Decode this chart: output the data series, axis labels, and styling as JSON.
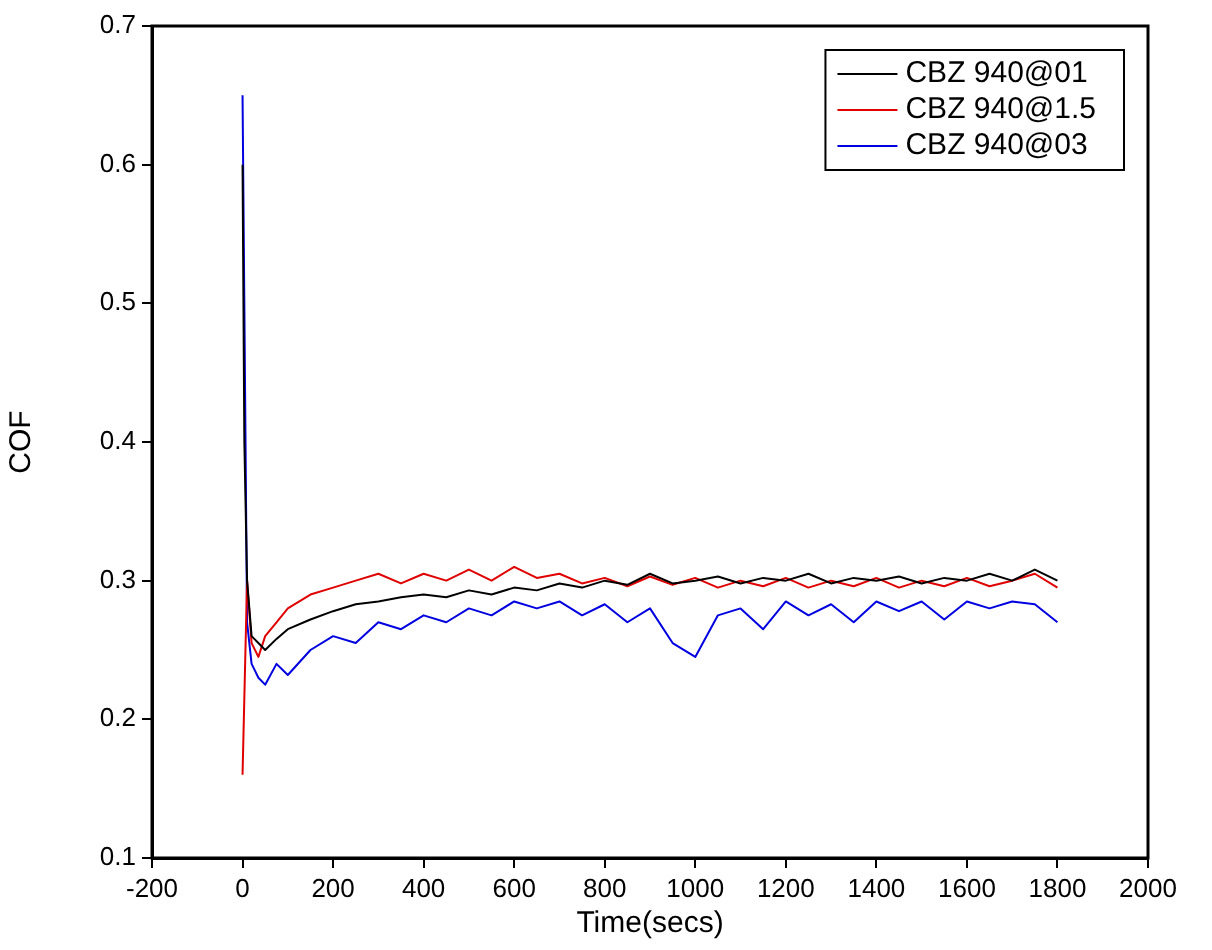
{
  "chart_data": {
    "type": "line",
    "xlabel": "Time(secs)",
    "ylabel": "COF",
    "x": [
      0,
      4,
      10,
      20,
      35,
      50,
      75,
      100,
      150,
      200,
      250,
      300,
      350,
      400,
      450,
      500,
      550,
      600,
      650,
      700,
      750,
      800,
      850,
      900,
      950,
      1000,
      1050,
      1100,
      1150,
      1200,
      1250,
      1300,
      1350,
      1400,
      1450,
      1500,
      1550,
      1600,
      1650,
      1700,
      1750,
      1800
    ],
    "series": [
      {
        "name": "CBZ 940@01",
        "color": "#000000",
        "values": [
          0.6,
          0.4,
          0.3,
          0.26,
          0.255,
          0.25,
          0.258,
          0.265,
          0.272,
          0.278,
          0.283,
          0.285,
          0.288,
          0.29,
          0.288,
          0.293,
          0.29,
          0.295,
          0.293,
          0.298,
          0.295,
          0.3,
          0.297,
          0.305,
          0.298,
          0.3,
          0.303,
          0.298,
          0.302,
          0.3,
          0.305,
          0.298,
          0.302,
          0.3,
          0.303,
          0.298,
          0.302,
          0.3,
          0.305,
          0.3,
          0.308,
          0.3
        ]
      },
      {
        "name": "CBZ 940@1.5",
        "color": "#e00000",
        "values": [
          0.16,
          null,
          0.3,
          0.255,
          0.245,
          0.26,
          0.27,
          0.28,
          0.29,
          0.295,
          0.3,
          0.305,
          0.298,
          0.305,
          0.3,
          0.308,
          0.3,
          0.31,
          0.302,
          0.305,
          0.298,
          0.302,
          0.296,
          0.303,
          0.297,
          0.302,
          0.295,
          0.3,
          0.296,
          0.302,
          0.295,
          0.3,
          0.296,
          0.302,
          0.295,
          0.3,
          0.296,
          0.302,
          0.296,
          0.3,
          0.305,
          0.295
        ]
      },
      {
        "name": "CBZ 940@03",
        "color": "#0000e0",
        "values": [
          0.65,
          null,
          0.27,
          0.24,
          0.23,
          0.225,
          0.24,
          0.232,
          0.25,
          0.26,
          0.255,
          0.27,
          0.265,
          0.275,
          0.27,
          0.28,
          0.275,
          0.285,
          0.28,
          0.285,
          0.275,
          0.283,
          0.27,
          0.28,
          0.255,
          0.245,
          0.275,
          0.28,
          0.265,
          0.285,
          0.275,
          0.283,
          0.27,
          0.285,
          0.278,
          0.285,
          0.272,
          0.285,
          0.28,
          0.285,
          0.283,
          0.27
        ]
      }
    ],
    "xlim": [
      -200,
      2000
    ],
    "xticks": [
      -200,
      0,
      200,
      400,
      600,
      800,
      1000,
      1200,
      1400,
      1600,
      1800,
      2000
    ],
    "ylim": [
      0.1,
      0.7
    ],
    "yticks": [
      0.1,
      0.2,
      0.3,
      0.4,
      0.5,
      0.6,
      0.7
    ],
    "grid": false,
    "legend": "top right",
    "marker": "none",
    "line_style": "solid"
  }
}
